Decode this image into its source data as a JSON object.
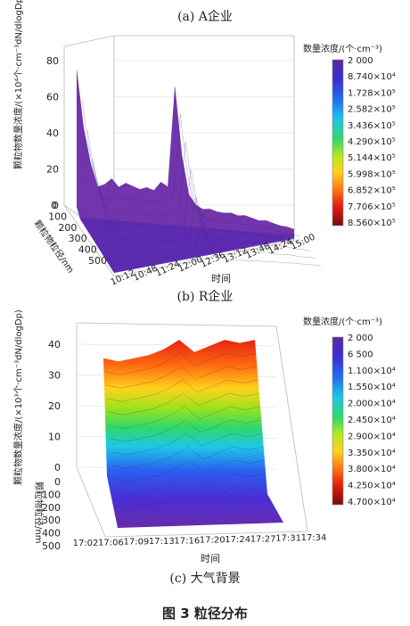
{
  "panel_titles": {
    "a": "(a) A企业",
    "b": "(b) R企业",
    "c": "(c) 大气背景"
  },
  "figure_caption": "图 3    粒径分布",
  "chart_data": [
    {
      "type": "surface3d",
      "z_label": "颗粒物数量浓度/(×10⁴个·cm⁻³dN/dlogDp)",
      "y_label": "颗粒物粒径/nm",
      "x_label": "时间",
      "z_ticks": [
        "0",
        "20",
        "40",
        "60",
        "80"
      ],
      "zlim": [
        0,
        85
      ],
      "y_ticks": [
        "0",
        "100",
        "200",
        "300",
        "400",
        "500"
      ],
      "x_ticks": [
        "10:12",
        "10:48",
        "11:24",
        "12:00",
        "12:36",
        "13:12",
        "13:48",
        "14:24",
        "15:00"
      ],
      "colorbar_title": "数量浓度/(个·cm⁻³)",
      "colorbar_labels": [
        "2 000",
        "8.740×10⁴",
        "1.728×10⁵",
        "2.582×10⁵",
        "3.436×10⁵",
        "4.290×10⁵",
        "5.144×10⁵",
        "5.998×10⁵",
        "6.852×10⁵",
        "7.706×10⁵",
        "8.560×10⁵"
      ],
      "front_edge_values": [
        70,
        40,
        22,
        10,
        12,
        16,
        12,
        15,
        14,
        13,
        15,
        14,
        20,
        18,
        82,
        40,
        16,
        10,
        8,
        9,
        8,
        8,
        9,
        8,
        9,
        8,
        7,
        8,
        7,
        6,
        6,
        5
      ]
    },
    {
      "type": "surface3d",
      "z_label": "颗粒物数量浓度/(×10³个·cm⁻³dN/dlogDp)",
      "y_label": "颗粒物粒径/nm",
      "x_label": "时间",
      "z_ticks": [
        "0",
        "10",
        "20",
        "30",
        "40"
      ],
      "zlim": [
        0,
        45
      ],
      "y_ticks": [
        "0",
        "100",
        "200",
        "300",
        "400",
        "500"
      ],
      "x_ticks": [
        "17:02",
        "17:06",
        "17:09",
        "17:13",
        "17:16",
        "17:20",
        "17:24",
        "17:27",
        "17:31",
        "17:34"
      ],
      "colorbar_title": "数量浓度/(个·cm⁻³)",
      "colorbar_labels": [
        "2 000",
        "6 500",
        "1.100×10⁴",
        "1.550×10⁴",
        "2.000×10⁴",
        "2.450×10⁴",
        "2.900×10⁴",
        "3.350×10⁴",
        "3.800×10⁴",
        "4.250×10⁴",
        "4.700×10⁴"
      ],
      "ridge_values": [
        36,
        35,
        36,
        37,
        39,
        42,
        38,
        40,
        42,
        41,
        42
      ]
    }
  ]
}
